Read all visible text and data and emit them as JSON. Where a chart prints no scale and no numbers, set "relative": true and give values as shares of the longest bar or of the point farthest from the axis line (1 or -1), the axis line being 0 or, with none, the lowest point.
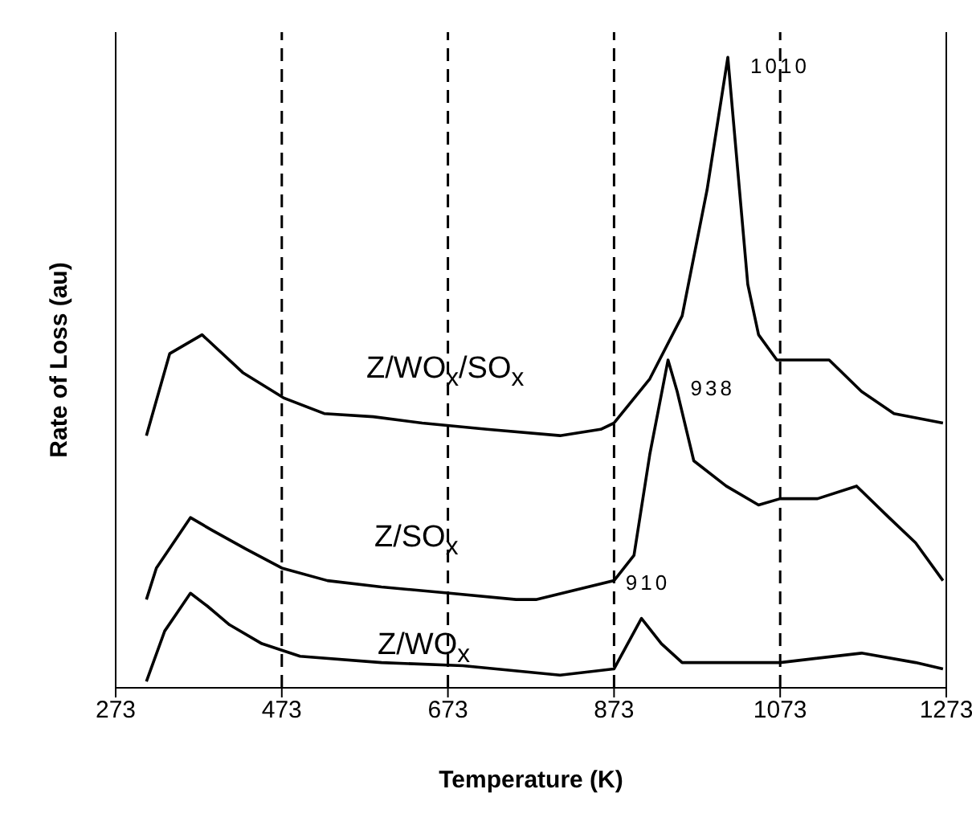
{
  "chart_data": {
    "type": "line",
    "xlabel": "Temperature  (K)",
    "ylabel": "Rate of Loss (au)",
    "relative": true,
    "xlim": [
      273,
      1273
    ],
    "xticks": [
      273,
      473,
      673,
      873,
      1073,
      1273
    ],
    "line_style": "solid",
    "marker": "none",
    "series": [
      {
        "name": "Z/WO$_{x}$/SO$_{x}$",
        "color": "#000000",
        "x": [
          310,
          338,
          377,
          426,
          475,
          524,
          583,
          642,
          720,
          808,
          857,
          873,
          916,
          955,
          985,
          1010,
          1024,
          1034,
          1047,
          1069,
          1132,
          1171,
          1210,
          1269
        ],
        "values": [
          0.4,
          0.53,
          0.56,
          0.5,
          0.46,
          0.435,
          0.43,
          0.42,
          0.41,
          0.4,
          0.41,
          0.42,
          0.49,
          0.59,
          0.79,
          1.0,
          0.79,
          0.64,
          0.56,
          0.52,
          0.52,
          0.47,
          0.435,
          0.42
        ]
      },
      {
        "name": "Z/SO$_{x}$",
        "color": "#000000",
        "x": [
          310,
          322,
          363,
          389,
          430,
          473,
          528,
          593,
          675,
          755,
          779,
          873,
          897,
          916,
          938,
          949,
          969,
          1008,
          1047,
          1073,
          1118,
          1165,
          1204,
          1236,
          1269
        ],
        "values": [
          0.14,
          0.19,
          0.27,
          0.25,
          0.22,
          0.19,
          0.17,
          0.16,
          0.15,
          0.14,
          0.14,
          0.17,
          0.21,
          0.37,
          0.52,
          0.47,
          0.36,
          0.32,
          0.29,
          0.3,
          0.3,
          0.32,
          0.27,
          0.23,
          0.17
        ]
      },
      {
        "name": "Z/WO$_{x}$",
        "color": "#000000",
        "x": [
          310,
          332,
          363,
          383,
          410,
          449,
          495,
          593,
          691,
          808,
          873,
          906,
          930,
          955,
          1073,
          1171,
          1236,
          1269
        ],
        "values": [
          0.01,
          0.09,
          0.15,
          0.13,
          0.1,
          0.07,
          0.05,
          0.04,
          0.035,
          0.02,
          0.03,
          0.11,
          0.07,
          0.04,
          0.04,
          0.055,
          0.04,
          0.03
        ]
      }
    ],
    "ref_lines": [
      {
        "axis": "x",
        "value": 473,
        "line_style": "dashed",
        "color": "#000000"
      },
      {
        "axis": "x",
        "value": 673,
        "line_style": "dashed",
        "color": "#000000"
      },
      {
        "axis": "x",
        "value": 873,
        "line_style": "dashed",
        "color": "#000000"
      },
      {
        "axis": "x",
        "value": 1073,
        "line_style": "dashed",
        "color": "#000000"
      }
    ],
    "annotations": [
      {
        "text": "1010",
        "x": 1010,
        "y": 1.0
      },
      {
        "text": "938",
        "x": 938,
        "y": 0.52
      },
      {
        "text": "910",
        "x": 906,
        "y": 0.11
      }
    ]
  }
}
